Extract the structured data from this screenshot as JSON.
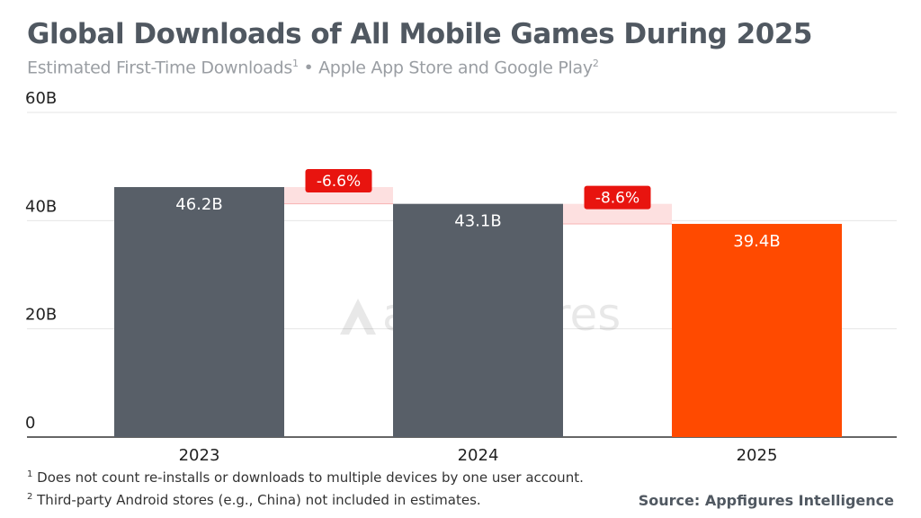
{
  "chart_data": {
    "type": "bar",
    "title": "Global Downloads of All Mobile Games During 2025",
    "subtitle": {
      "text1": "Estimated First-Time Downloads",
      "sup1": "1",
      "text2": " • Apple App Store and Google Play",
      "sup2": "2"
    },
    "categories": [
      "2023",
      "2024",
      "2025"
    ],
    "values": [
      46.2,
      43.1,
      39.4
    ],
    "value_labels": [
      "46.2B",
      "43.1B",
      "39.4B"
    ],
    "unit": "B",
    "ylim": [
      0,
      60
    ],
    "yticks": [
      0,
      20,
      40,
      60
    ],
    "ytick_labels": [
      "0",
      "20B",
      "40B",
      "60B"
    ],
    "grid": true,
    "changes": [
      {
        "from": "2023",
        "to": "2024",
        "label": "-6.6%"
      },
      {
        "from": "2024",
        "to": "2025",
        "label": "-8.6%"
      }
    ],
    "colors": {
      "bar": "#585f68",
      "highlight": "#ff4a00",
      "badge": "#e8140f",
      "connector": "#fde0e0"
    }
  },
  "footnotes": [
    {
      "sup": "1",
      "text": " Does not count re-installs or downloads to multiple devices by one user account."
    },
    {
      "sup": "2",
      "text": " Third-party Android stores (e.g., China) not included in estimates."
    }
  ],
  "source": "Source: Appfigures Intelligence",
  "watermark": "appfigures"
}
